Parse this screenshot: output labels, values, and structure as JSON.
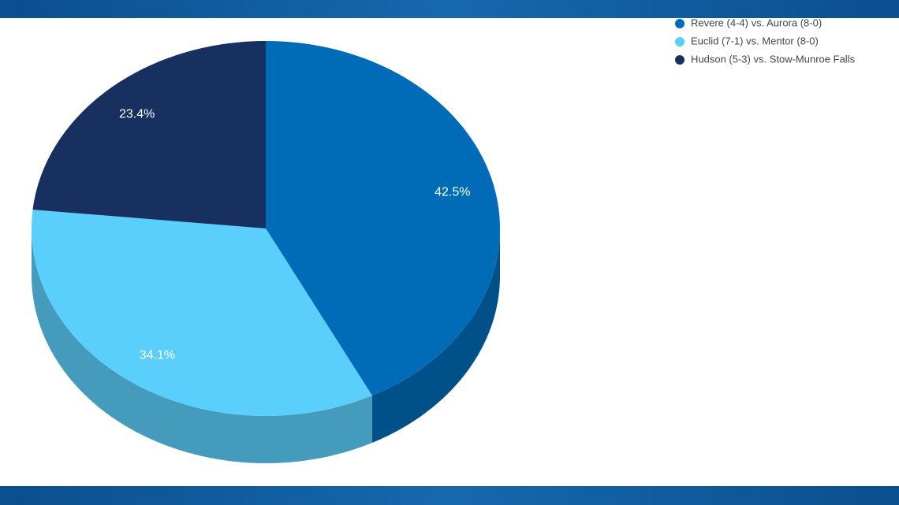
{
  "chart_data": {
    "type": "pie",
    "categories": [
      "Revere (4-4) vs. Aurora (8-0)",
      "Euclid (7-1) vs. Mentor (8-0)",
      "Hudson (5-3) vs. Stow-Munroe Falls"
    ],
    "values": [
      42.5,
      34.1,
      23.4
    ],
    "value_labels": [
      "42.5%",
      "34.1%",
      "23.4%"
    ],
    "colors": [
      "#006cb8",
      "#5bcffb",
      "#17305f"
    ],
    "legend": "top-right"
  }
}
